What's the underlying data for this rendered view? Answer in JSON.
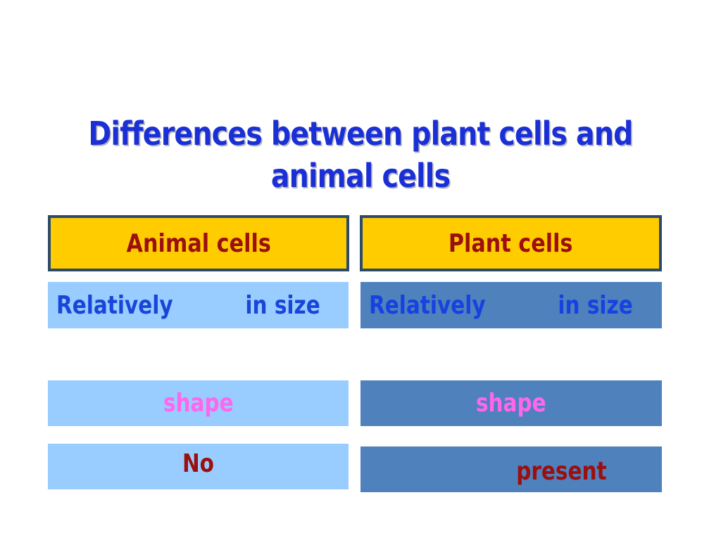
{
  "slide": {
    "title_line1": "Differences between plant cells and",
    "title_line2": "animal cells",
    "columns": {
      "animal": "Animal cells",
      "plant": "Plant cells"
    },
    "rows": {
      "size": {
        "animal": "Relatively          in size",
        "plant": "Relatively          in size"
      },
      "shape": {
        "animal": "shape",
        "plant": "shape"
      },
      "last": {
        "animal": "No",
        "plant": "present"
      }
    },
    "colors": {
      "title": "#1a2fd6",
      "header_bg": "#ffcc00",
      "header_text": "#9b0f0f",
      "light_cell": "#99ccff",
      "dark_cell": "#4f81bd",
      "shape_text": "#ff66ee"
    }
  }
}
